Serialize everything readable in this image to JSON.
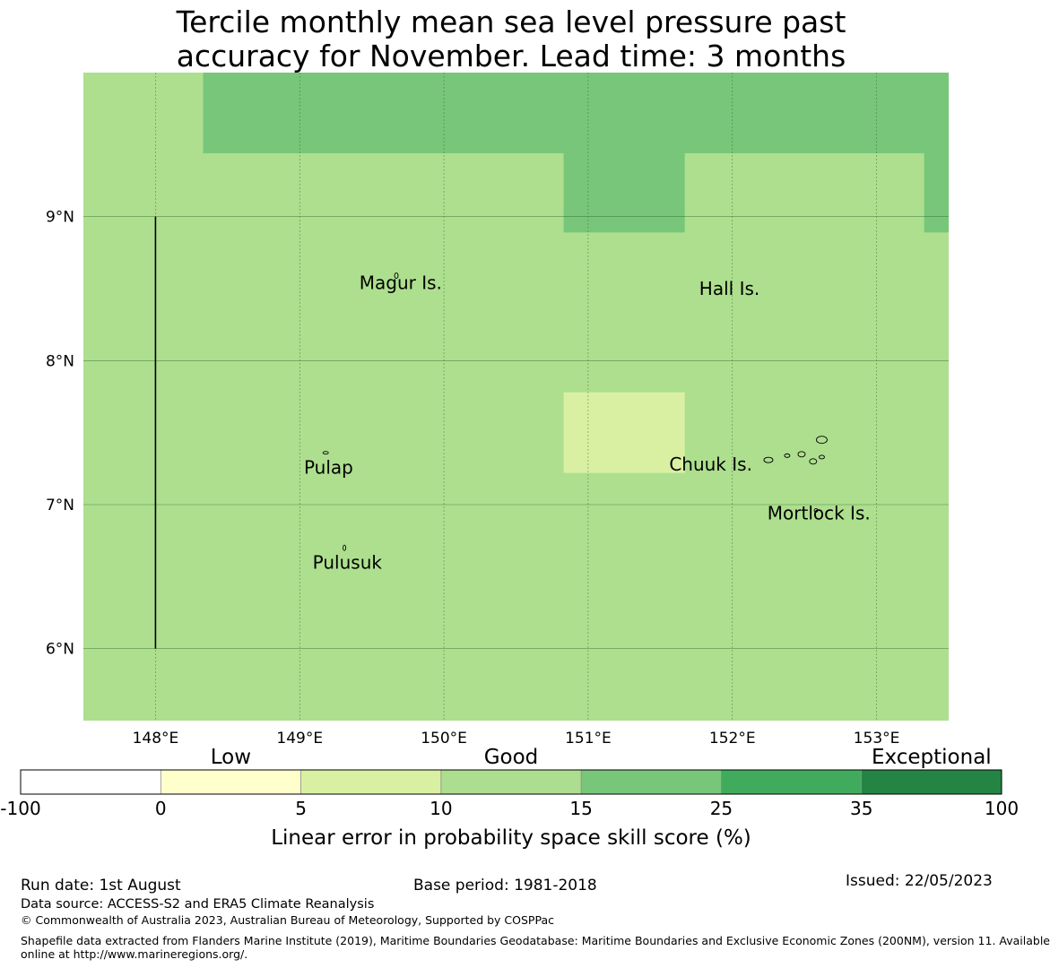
{
  "title": {
    "line1": "Tercile monthly mean sea level pressure past",
    "line2": "accuracy for November. Lead time: 3 months"
  },
  "map": {
    "extent": {
      "lon": [
        147.5,
        153.5
      ],
      "lat": [
        5.5,
        10.0
      ]
    },
    "lon_ticks": [
      {
        "value": 148,
        "label": "148°E"
      },
      {
        "value": 149,
        "label": "149°E"
      },
      {
        "value": 150,
        "label": "150°E"
      },
      {
        "value": 151,
        "label": "151°E"
      },
      {
        "value": 152,
        "label": "152°E"
      },
      {
        "value": 153,
        "label": "153°E"
      }
    ],
    "lat_ticks": [
      {
        "value": 9,
        "label": "9°N"
      },
      {
        "value": 8,
        "label": "8°N"
      },
      {
        "value": 7,
        "label": "7°N"
      },
      {
        "value": 6,
        "label": "6°N"
      }
    ],
    "background_color": "#addf8e",
    "skill_cells": [
      {
        "lon": [
          148.33,
          153.5
        ],
        "lat": [
          9.44,
          10.0
        ],
        "color": "#78c679"
      },
      {
        "lon": [
          150.83,
          151.67
        ],
        "lat": [
          8.89,
          9.44
        ],
        "color": "#78c679"
      },
      {
        "lon": [
          153.33,
          153.5
        ],
        "lat": [
          8.89,
          9.44
        ],
        "color": "#78c679"
      },
      {
        "lon": [
          150.83,
          151.67
        ],
        "lat": [
          7.22,
          7.78
        ],
        "color": "#d9f0a3"
      }
    ],
    "boundary_line": {
      "lon": 148.0,
      "lat": [
        6.0,
        9.0
      ]
    },
    "places": [
      {
        "name": "Magur Is.",
        "lon": 149.7,
        "lat": 8.53
      },
      {
        "name": "Hall Is.",
        "lon": 151.98,
        "lat": 8.49
      },
      {
        "name": "Pulap",
        "lon": 149.2,
        "lat": 7.25
      },
      {
        "name": "Chuuk Is.",
        "lon": 151.85,
        "lat": 7.27
      },
      {
        "name": "Mortlock Is.",
        "lon": 152.6,
        "lat": 6.93
      },
      {
        "name": "Pulusuk",
        "lon": 149.33,
        "lat": 6.59
      }
    ]
  },
  "legend": {
    "categories": [
      {
        "label": "Low",
        "position": 1.5
      },
      {
        "label": "Good",
        "position": 3.5
      },
      {
        "label": "Exceptional",
        "position": 6.5
      }
    ],
    "bins": [
      {
        "from": "-100",
        "to": "0",
        "color": "#ffffff"
      },
      {
        "from": "0",
        "to": "5",
        "color": "#ffffcc"
      },
      {
        "from": "5",
        "to": "10",
        "color": "#d9f0a3"
      },
      {
        "from": "10",
        "to": "15",
        "color": "#addd8e"
      },
      {
        "from": "15",
        "to": "25",
        "color": "#78c679"
      },
      {
        "from": "25",
        "to": "35",
        "color": "#41ab5d"
      },
      {
        "from": "35",
        "to": "100",
        "color": "#238443"
      }
    ],
    "tick_labels": [
      "-100",
      "0",
      "5",
      "10",
      "15",
      "25",
      "35",
      "100"
    ],
    "xlabel": "Linear error in probability space skill score (%)"
  },
  "footer": {
    "run_date": "Run date: 1st August",
    "base_period": "Base period: 1981-2018",
    "issued": "Issued: 22/05/2023",
    "data_source": "Data source: ACCESS-S2 and ERA5 Climate Reanalysis",
    "copyright": "© Commonwealth of Australia 2023, Australian Bureau of Meteorology, Supported by COSPPac",
    "shapefile_line1": "Shapefile data extracted from Flanders Marine Institute (2019), Maritime Boundaries Geodatabase: Maritime Boundaries and Exclusive Economic Zones (200NM), version 11. Available",
    "shapefile_line2": "online at http://www.marineregions.org/."
  }
}
